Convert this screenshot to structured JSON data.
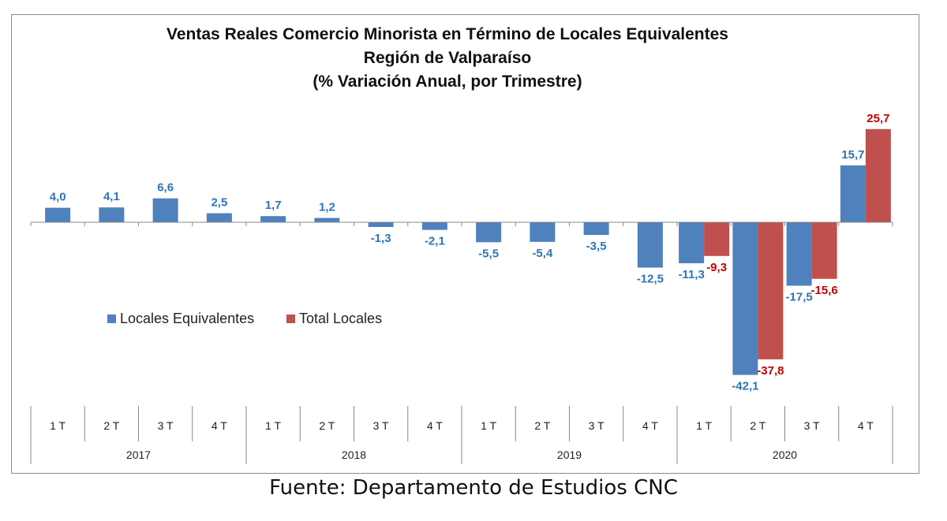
{
  "chart_data": {
    "type": "bar",
    "title": "Ventas Reales Comercio Minorista  en Término de Locales Equivalentes",
    "subtitle": "Región de Valparaíso",
    "subtitle2": "(% Variación Anual, por Trimestre)",
    "categories": [
      "1 T",
      "2 T",
      "3 T",
      "4 T",
      "1 T",
      "2 T",
      "3 T",
      "4 T",
      "1 T",
      "2 T",
      "3 T",
      "4 T",
      "1 T",
      "2 T",
      "3 T",
      "4 T"
    ],
    "years": [
      "2017",
      "2018",
      "2019",
      "2020"
    ],
    "series": [
      {
        "name": "Locales Equivalentes",
        "color": "#4f81bd",
        "label_color": "#2e75b6",
        "values": [
          4.0,
          4.1,
          6.6,
          2.5,
          1.7,
          1.2,
          -1.3,
          -2.1,
          -5.5,
          -5.4,
          -3.5,
          -12.5,
          -11.3,
          -42.1,
          -17.5,
          15.7
        ],
        "labels": [
          "4,0",
          "4,1",
          "6,6",
          "2,5",
          "1,7",
          "1,2",
          "-1,3",
          "-2,1",
          "-5,5",
          "-5,4",
          "-3,5",
          "-12,5",
          "-11,3",
          "-42,1",
          "-17,5",
          "15,7"
        ]
      },
      {
        "name": "Total Locales",
        "color": "#c0504d",
        "label_color": "#c00000",
        "values": [
          null,
          null,
          null,
          null,
          null,
          null,
          null,
          null,
          null,
          null,
          null,
          null,
          -9.3,
          -37.8,
          -15.6,
          25.7
        ],
        "labels": [
          null,
          null,
          null,
          null,
          null,
          null,
          null,
          null,
          null,
          null,
          null,
          null,
          "-9,3",
          "-37,8",
          "-15,6",
          "25,7"
        ]
      }
    ],
    "legend_position": "left-middle",
    "grid": false
  },
  "source": "Fuente: Departamento de Estudios CNC"
}
